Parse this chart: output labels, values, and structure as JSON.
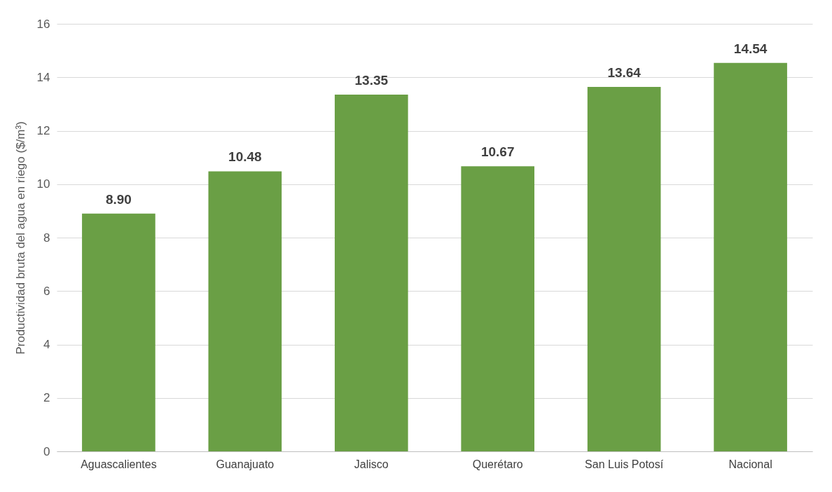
{
  "chart_data": {
    "type": "bar",
    "ylabel": "Productividad bruta del agua en riego ($/m³)",
    "categories": [
      "Aguascalientes",
      "Guanajuato",
      "Jalisco",
      "Querétaro",
      "San Luis Potosí",
      "Nacional"
    ],
    "values": [
      8.9,
      10.48,
      13.35,
      10.67,
      13.64,
      14.54
    ],
    "value_labels": [
      "8.90",
      "10.48",
      "13.35",
      "10.67",
      "13.64",
      "14.54"
    ],
    "color": "#6a9f45",
    "ylim": [
      0,
      16
    ],
    "yticks": [
      0,
      2,
      4,
      6,
      8,
      10,
      12,
      14,
      16
    ],
    "grid": "y"
  }
}
